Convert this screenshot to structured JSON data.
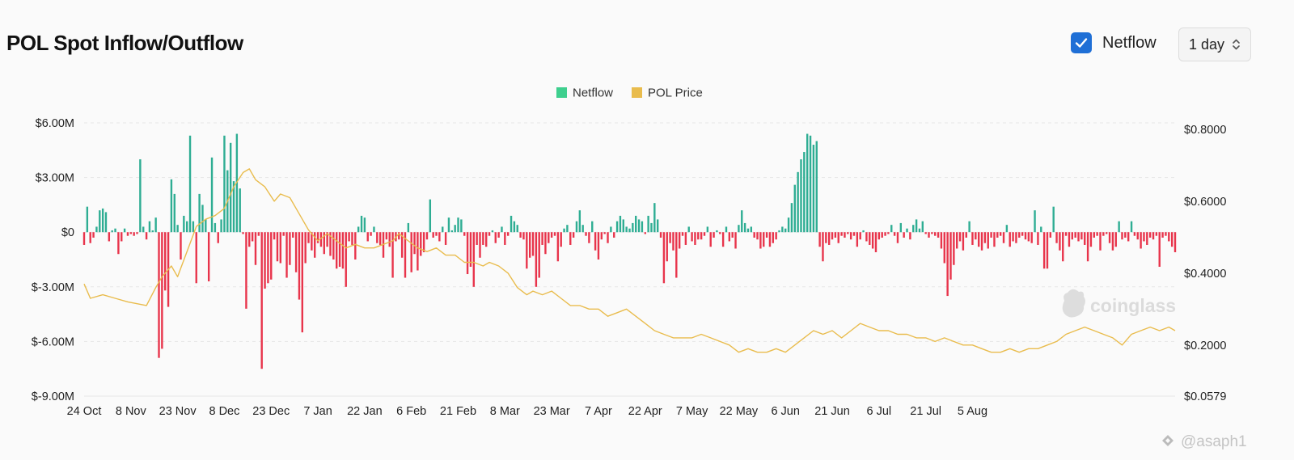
{
  "header": {
    "title": "POL Spot Inflow/Outflow",
    "netflow_toggle_label": "Netflow",
    "netflow_checked": true,
    "interval_value": "1 day"
  },
  "watermarks": {
    "logo_text": "coinglass",
    "handle": "@asaph1"
  },
  "colors": {
    "positive": "#2ead93",
    "negative": "#e8344b",
    "price": "#e9bc4d",
    "checkbox": "#1f6fd6"
  },
  "chart_data": {
    "type": "bar",
    "title": "POL Spot Inflow/Outflow",
    "legend": [
      {
        "name": "Netflow",
        "color": "#3ecf8e"
      },
      {
        "name": "POL Price",
        "color": "#e9bc4d"
      }
    ],
    "legend_position": "top-center",
    "grid": true,
    "x_tick_labels": [
      "24 Oct",
      "8 Nov",
      "23 Nov",
      "8 Dec",
      "23 Dec",
      "7 Jan",
      "22 Jan",
      "6 Feb",
      "21 Feb",
      "8 Mar",
      "23 Mar",
      "7 Apr",
      "22 Apr",
      "7 May",
      "22 May",
      "6 Jun",
      "21 Jun",
      "6 Jul",
      "21 Jul",
      "5 Aug"
    ],
    "y_left": {
      "ticks": [
        6,
        3,
        0,
        -3,
        -6,
        -9
      ],
      "tick_labels": [
        "$6.00M",
        "$3.00M",
        "$0",
        "$-3.00M",
        "$-6.00M",
        "$-9.00M"
      ],
      "range": [
        -9,
        6
      ],
      "unit": "M USD"
    },
    "y_right": {
      "tick_values": [
        0.8,
        0.6,
        0.4,
        0.2,
        0.0579
      ],
      "tick_labels": [
        "$0.8000",
        "$0.6000",
        "$0.4000",
        "$0.2000",
        "$0.0579"
      ],
      "range": [
        0.0579,
        0.8
      ]
    },
    "netflow_series": {
      "name": "Netflow",
      "unit": "M USD",
      "x_start": "2024-10-24",
      "step_days": 1,
      "values": [
        -0.7,
        1.4,
        -0.6,
        -0.3,
        0.3,
        1.2,
        1.3,
        1.1,
        -0.5,
        0.1,
        0.2,
        -1.2,
        -0.5,
        0.2,
        -0.2,
        -0.1,
        -0.2,
        -0.1,
        4,
        0.3,
        -0.4,
        0.6,
        0.1,
        0.8,
        -6.9,
        -6.4,
        -3.2,
        -4.1,
        2.9,
        2.1,
        0.4,
        -1.5,
        0.9,
        0.6,
        5.3,
        0.6,
        -2.8,
        2.1,
        1.5,
        0.7,
        -2.7,
        4.1,
        0.5,
        -0.6,
        0.7,
        5.3,
        3.4,
        4.9,
        2.8,
        5.4,
        2.4,
        -0.1,
        -4.2,
        -0.8,
        -0.5,
        -1.8,
        -0.2,
        -7.5,
        -3.1,
        -2.8,
        -2.6,
        -0.4,
        -1.6,
        -1.7,
        -0.2,
        -2.5,
        -1.8,
        -0.3,
        -2.2,
        -3.7,
        -5.5,
        -1.7,
        -0.6,
        -1.0,
        -1.4,
        -0.6,
        -0.8,
        -1.2,
        -0.8,
        -1.3,
        -1.5,
        -2.0,
        -1.9,
        -2.0,
        -3.0,
        -0.5,
        -0.7,
        -1.5,
        0.3,
        0.9,
        0.8,
        -0.5,
        -0.2,
        0.3,
        -0.6,
        -0.7,
        -1.4,
        -0.4,
        -0.8,
        -2.5,
        -0.5,
        -0.4,
        -1.4,
        -2.5,
        0.5,
        -2.2,
        -1.2,
        -2.1,
        -1.3,
        -1.1,
        -0.4,
        1.8,
        -0.3,
        -0.2,
        -0.5,
        0.3,
        -0.7,
        0.8,
        0.1,
        0.4,
        0.8,
        0.7,
        -0.2,
        -2.3,
        -1.9,
        -3.0,
        -0.7,
        -1.4,
        -0.7,
        -0.8,
        -0.2,
        0.1,
        -0.6,
        -0.3,
        0.3,
        -0.7,
        -0.2,
        0.9,
        0.6,
        0.4,
        -0.3,
        -0.4,
        -2.0,
        -1.4,
        -1.3,
        -3.0,
        -2.5,
        -0.7,
        -1.2,
        -0.6,
        -0.3,
        -0.2,
        -1.6,
        -0.8,
        0.2,
        0.4,
        -0.7,
        -0.3,
        0.6,
        1.2,
        0.4,
        -0.2,
        -0.6,
        0.6,
        -1.0,
        -1.5,
        -0.4,
        -0.1,
        -0.6,
        0.3,
        -0.3,
        0.6,
        0.9,
        0.7,
        0.3,
        0.2,
        0.5,
        0.9,
        0.7,
        0.6,
        -0.1,
        0.9,
        0.5,
        1.6,
        0.7,
        -0.3,
        -2.8,
        -1.6,
        -0.6,
        -1.0,
        -2.5,
        -0.9,
        -0.2,
        -0.7,
        0.3,
        -0.5,
        -0.7,
        -0.4,
        -0.4,
        -0.2,
        0.3,
        -0.8,
        -0.3,
        0.1,
        -0.1,
        -0.8,
        0.3,
        -0.5,
        -0.3,
        -0.9,
        0.4,
        1.2,
        0.5,
        0.2,
        0.3,
        -0.3,
        -0.4,
        -0.9,
        -0.8,
        -0.3,
        -0.8,
        -0.6,
        -0.4,
        0.1,
        0.3,
        0.2,
        0.8,
        1.6,
        2.6,
        3.3,
        4.0,
        4.4,
        5.4,
        5.3,
        4.8,
        5.0,
        -0.8,
        -1.6,
        -0.6,
        -0.7,
        -0.4,
        -0.3,
        -0.6,
        -0.2,
        -0.3,
        -0.1,
        -0.4,
        -0.2,
        -0.8,
        -0.4,
        0.1,
        -0.5,
        -0.7,
        -0.9,
        -1.1,
        -0.4,
        -0.3,
        -0.2,
        -0.1,
        0.4,
        -0.2,
        -0.6,
        0.5,
        -0.3,
        0.2,
        -0.4,
        0.4,
        0.7,
        0.2,
        0.6,
        -0.1,
        -0.3,
        -0.1,
        -0.2,
        -0.3,
        -0.9,
        -1.7,
        -3.5,
        -2.6,
        -1.8,
        -0.9,
        -0.5,
        -1.0,
        -0.3,
        0.6,
        -0.7,
        -0.4,
        -0.8,
        -1.0,
        -0.6,
        -0.9,
        -0.3,
        -0.8,
        -0.3,
        -0.2,
        -0.6,
        0.4,
        -0.8,
        -0.5,
        -0.6,
        -0.3,
        -0.2,
        -0.4,
        -0.5,
        -0.6,
        1.2,
        -0.7,
        0.3,
        -2.0,
        -2.0,
        -0.3,
        1.4,
        -0.6,
        -1.0,
        -1.6,
        -0.2,
        -0.8,
        -0.4,
        -0.3,
        -0.5,
        -0.4,
        -0.7,
        -1.6,
        -0.8,
        -0.3,
        -0.2,
        -1.0,
        -0.2,
        -0.1,
        -0.6,
        -1.0,
        -0.8,
        0.6,
        -0.4,
        -0.3,
        -0.5,
        0.6,
        -0.2,
        -0.4,
        -0.9,
        -0.5,
        -0.7,
        -0.3,
        -0.4,
        -0.2,
        -1.9,
        -0.3,
        -0.2,
        -0.5,
        -0.8,
        -1.1
      ]
    },
    "price_series": {
      "name": "POL Price",
      "unit": "USD",
      "points": [
        [
          0,
          0.37
        ],
        [
          2,
          0.33
        ],
        [
          6,
          0.34
        ],
        [
          10,
          0.33
        ],
        [
          14,
          0.32
        ],
        [
          20,
          0.31
        ],
        [
          23,
          0.36
        ],
        [
          25,
          0.39
        ],
        [
          28,
          0.42
        ],
        [
          30,
          0.39
        ],
        [
          33,
          0.46
        ],
        [
          36,
          0.53
        ],
        [
          39,
          0.55
        ],
        [
          42,
          0.56
        ],
        [
          45,
          0.58
        ],
        [
          48,
          0.64
        ],
        [
          51,
          0.68
        ],
        [
          53,
          0.69
        ],
        [
          55,
          0.66
        ],
        [
          58,
          0.64
        ],
        [
          61,
          0.6
        ],
        [
          63,
          0.62
        ],
        [
          66,
          0.61
        ],
        [
          68,
          0.58
        ],
        [
          70,
          0.55
        ],
        [
          72,
          0.52
        ],
        [
          75,
          0.49
        ],
        [
          78,
          0.51
        ],
        [
          81,
          0.49
        ],
        [
          84,
          0.47
        ],
        [
          87,
          0.48
        ],
        [
          90,
          0.47
        ],
        [
          93,
          0.47
        ],
        [
          96,
          0.48
        ],
        [
          99,
          0.49
        ],
        [
          101,
          0.51
        ],
        [
          104,
          0.49
        ],
        [
          107,
          0.47
        ],
        [
          110,
          0.46
        ],
        [
          113,
          0.47
        ],
        [
          116,
          0.45
        ],
        [
          119,
          0.45
        ],
        [
          122,
          0.43
        ],
        [
          125,
          0.43
        ],
        [
          128,
          0.42
        ],
        [
          130,
          0.43
        ],
        [
          133,
          0.42
        ],
        [
          136,
          0.4
        ],
        [
          139,
          0.36
        ],
        [
          142,
          0.34
        ],
        [
          144,
          0.35
        ],
        [
          147,
          0.34
        ],
        [
          150,
          0.35
        ],
        [
          153,
          0.33
        ],
        [
          156,
          0.31
        ],
        [
          159,
          0.31
        ],
        [
          162,
          0.3
        ],
        [
          165,
          0.3
        ],
        [
          168,
          0.28
        ],
        [
          171,
          0.29
        ],
        [
          174,
          0.3
        ],
        [
          177,
          0.28
        ],
        [
          180,
          0.26
        ],
        [
          183,
          0.24
        ],
        [
          186,
          0.23
        ],
        [
          189,
          0.22
        ],
        [
          192,
          0.22
        ],
        [
          195,
          0.22
        ],
        [
          198,
          0.23
        ],
        [
          201,
          0.22
        ],
        [
          204,
          0.21
        ],
        [
          207,
          0.2
        ],
        [
          210,
          0.18
        ],
        [
          213,
          0.19
        ],
        [
          216,
          0.18
        ],
        [
          219,
          0.18
        ],
        [
          222,
          0.19
        ],
        [
          225,
          0.18
        ],
        [
          228,
          0.2
        ],
        [
          231,
          0.22
        ],
        [
          234,
          0.24
        ],
        [
          237,
          0.23
        ],
        [
          240,
          0.24
        ],
        [
          243,
          0.22
        ],
        [
          246,
          0.24
        ],
        [
          249,
          0.26
        ],
        [
          252,
          0.25
        ],
        [
          255,
          0.24
        ],
        [
          258,
          0.24
        ],
        [
          261,
          0.23
        ],
        [
          264,
          0.23
        ],
        [
          267,
          0.22
        ],
        [
          270,
          0.22
        ],
        [
          273,
          0.21
        ],
        [
          276,
          0.22
        ],
        [
          279,
          0.21
        ],
        [
          282,
          0.2
        ],
        [
          285,
          0.2
        ],
        [
          288,
          0.19
        ],
        [
          291,
          0.18
        ],
        [
          294,
          0.18
        ],
        [
          297,
          0.19
        ],
        [
          300,
          0.18
        ],
        [
          303,
          0.19
        ],
        [
          306,
          0.19
        ],
        [
          309,
          0.2
        ],
        [
          312,
          0.21
        ],
        [
          315,
          0.23
        ],
        [
          318,
          0.24
        ],
        [
          321,
          0.25
        ],
        [
          324,
          0.24
        ],
        [
          327,
          0.23
        ],
        [
          330,
          0.22
        ],
        [
          333,
          0.2
        ],
        [
          336,
          0.23
        ],
        [
          339,
          0.24
        ],
        [
          342,
          0.25
        ],
        [
          345,
          0.24
        ],
        [
          348,
          0.25
        ],
        [
          350,
          0.24
        ]
      ]
    }
  }
}
